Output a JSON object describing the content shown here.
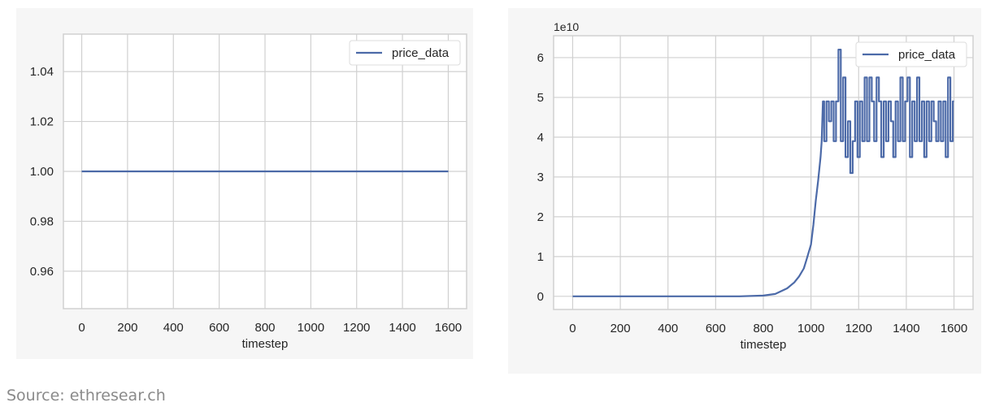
{
  "source": "Source: ethresear.ch",
  "colors": {
    "line": "#4c6aa8",
    "grid": "#d0d0d0",
    "figure_bg": "#f6f6f6",
    "axes_bg": "#ffffff"
  },
  "chart_data": [
    {
      "type": "line",
      "title": "",
      "xlabel": "timestep",
      "ylabel": "",
      "xlim": [
        -80,
        1680
      ],
      "ylim": [
        0.945,
        1.055
      ],
      "xticks": [
        0,
        200,
        400,
        600,
        800,
        1000,
        1200,
        1400,
        1600
      ],
      "xtick_labels": [
        "0",
        "200",
        "400",
        "600",
        "800",
        "1000",
        "1200",
        "1400",
        "1600"
      ],
      "yticks": [
        0.96,
        0.98,
        1.0,
        1.02,
        1.04
      ],
      "ytick_labels": [
        "0.96",
        "0.98",
        "1.00",
        "1.02",
        "1.04"
      ],
      "grid": true,
      "legend": {
        "placement": "top-right",
        "entries": [
          "price_data"
        ]
      },
      "series": [
        {
          "name": "price_data",
          "x": [
            0,
            1600
          ],
          "y": [
            1.0,
            1.0
          ]
        }
      ]
    },
    {
      "type": "line",
      "title": "",
      "xlabel": "timestep",
      "ylabel": "",
      "offset_label": "1e10",
      "xlim": [
        -80,
        1680
      ],
      "ylim": [
        -0.33,
        6.55
      ],
      "xticks": [
        0,
        200,
        400,
        600,
        800,
        1000,
        1200,
        1400,
        1600
      ],
      "xtick_labels": [
        "0",
        "200",
        "400",
        "600",
        "800",
        "1000",
        "1200",
        "1400",
        "1600"
      ],
      "yticks": [
        0,
        1,
        2,
        3,
        4,
        5,
        6
      ],
      "ytick_labels": [
        "0",
        "1",
        "2",
        "3",
        "4",
        "5",
        "6"
      ],
      "grid": true,
      "legend": {
        "placement": "top-right",
        "entries": [
          "price_data"
        ]
      },
      "series": [
        {
          "name": "price_data",
          "x": [
            0,
            700,
            800,
            850,
            900,
            930,
            950,
            970,
            980,
            990,
            1000,
            1010,
            1020,
            1030,
            1040,
            1045,
            1050,
            1060,
            1070,
            1080,
            1090,
            1100,
            1110,
            1120,
            1130,
            1140,
            1150,
            1160,
            1170,
            1180,
            1190,
            1200,
            1210,
            1220,
            1230,
            1240,
            1250,
            1260,
            1270,
            1280,
            1290,
            1300,
            1310,
            1320,
            1330,
            1340,
            1350,
            1360,
            1370,
            1380,
            1390,
            1400,
            1410,
            1420,
            1430,
            1440,
            1450,
            1460,
            1470,
            1480,
            1490,
            1500,
            1510,
            1520,
            1530,
            1540,
            1550,
            1560,
            1570,
            1580,
            1590,
            1600
          ],
          "y": [
            0,
            0,
            0.02,
            0.06,
            0.2,
            0.35,
            0.5,
            0.7,
            0.9,
            1.1,
            1.3,
            1.8,
            2.4,
            2.9,
            3.5,
            3.9,
            4.9,
            3.9,
            4.9,
            4.4,
            4.9,
            3.9,
            4.9,
            6.2,
            3.9,
            5.5,
            3.5,
            4.4,
            3.1,
            3.9,
            4.9,
            3.5,
            4.9,
            3.9,
            5.5,
            3.9,
            5.5,
            4.9,
            3.9,
            5.5,
            4.9,
            3.5,
            4.9,
            3.9,
            4.9,
            4.4,
            3.5,
            4.9,
            3.9,
            5.5,
            3.9,
            4.9,
            5.5,
            3.5,
            4.9,
            3.9,
            5.5,
            3.9,
            4.9,
            3.5,
            4.9,
            3.9,
            4.9,
            4.4,
            3.9,
            4.9,
            3.9,
            4.9,
            3.5,
            5.5,
            3.9,
            4.9
          ]
        }
      ]
    }
  ]
}
